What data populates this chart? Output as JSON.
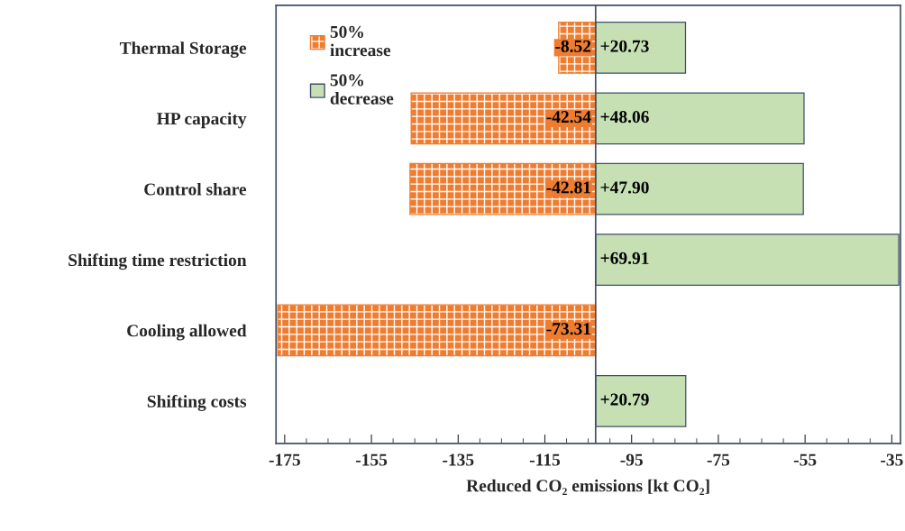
{
  "chart_data": {
    "type": "bar",
    "orientation": "horizontal",
    "xlabel": "Reduced CO₂ emissions [kt CO₂]",
    "categories": [
      "Thermal Storage",
      "HP capacity",
      "Control share",
      "Shifting time restriction",
      "Cooling allowed",
      "Shifting costs"
    ],
    "series": [
      {
        "name": "50% increase",
        "color": "#ee7d31",
        "base": [
          -103.3,
          -103.3,
          -103.3,
          null,
          -103.3,
          null
        ],
        "values": [
          -8.52,
          -42.54,
          -42.81,
          null,
          -73.31,
          null
        ],
        "value_labels": [
          "-8.52",
          "-42.54",
          "-42.81",
          null,
          "-73.31",
          null
        ]
      },
      {
        "name": "50% decrease",
        "color": "#c6e0b4",
        "base": [
          -103.3,
          -103.3,
          -103.3,
          -103.3,
          null,
          -103.3
        ],
        "values": [
          20.73,
          48.06,
          47.9,
          69.91,
          null,
          20.79
        ],
        "value_labels": [
          "+20.73",
          "+48.06",
          "+47.90",
          "+69.91",
          null,
          "+20.79"
        ]
      }
    ],
    "xlim": [
      -177,
      -33
    ],
    "xticks": [
      -175,
      -155,
      -135,
      -115,
      -95,
      -75,
      -55,
      -35
    ],
    "ref_lines": [
      {
        "axis": "x",
        "value": -103.3,
        "color": "#3f5068"
      }
    ],
    "grid": false,
    "legend": "top left"
  }
}
